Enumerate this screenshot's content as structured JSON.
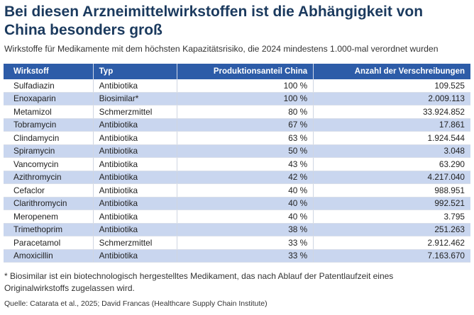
{
  "header": {
    "title": "Bei diesen Arzneimittelwirkstoffen ist die Abhängigkeit von China besonders groß",
    "subtitle": "Wirkstoffe für Medikamente mit dem höchsten Kapazitätsrisiko, die 2024 mindestens 1.000-mal verordnet wurden"
  },
  "table": {
    "columns": [
      "Wirkstoff",
      "Typ",
      "Produktionsanteil China",
      "Anzahl der Verschreibungen"
    ],
    "rows": [
      [
        "Sulfadiazin",
        "Antibiotika",
        "100 %",
        "109.525"
      ],
      [
        "Enoxaparin",
        "Biosimilar*",
        "100 %",
        "2.009.113"
      ],
      [
        "Metamizol",
        "Schmerzmittel",
        "80 %",
        "33.924.852"
      ],
      [
        "Tobramycin",
        "Antibiotika",
        "67 %",
        "17.861"
      ],
      [
        "Clindamycin",
        "Antibiotika",
        "63 %",
        "1.924.544"
      ],
      [
        "Spiramycin",
        "Antibiotika",
        "50 %",
        "3.048"
      ],
      [
        "Vancomycin",
        "Antibiotika",
        "43 %",
        "63.290"
      ],
      [
        "Azithromycin",
        "Antibiotika",
        "42 %",
        "4.217.040"
      ],
      [
        "Cefaclor",
        "Antibiotika",
        "40 %",
        "988.951"
      ],
      [
        "Clarithromycin",
        "Antibiotika",
        "40 %",
        "992.521"
      ],
      [
        "Meropenem",
        "Antibiotika",
        "40 %",
        "3.795"
      ],
      [
        "Trimethoprim",
        "Antibiotika",
        "38 %",
        "251.263"
      ],
      [
        "Paracetamol",
        "Schmerzmittel",
        "33 %",
        "2.912.462"
      ],
      [
        "Amoxicillin",
        "Antibiotika",
        "33 %",
        "7.163.670"
      ]
    ]
  },
  "footnote": "* Biosimilar ist ein biotechnologisch hergestelltes Medikament, das nach Ablauf der Patentlaufzeit eines Originalwirkstoffs zugelassen wird.",
  "source": "Quelle: Catarata et al., 2025; David Francas (Healthcare Supply Chain Institute)"
}
